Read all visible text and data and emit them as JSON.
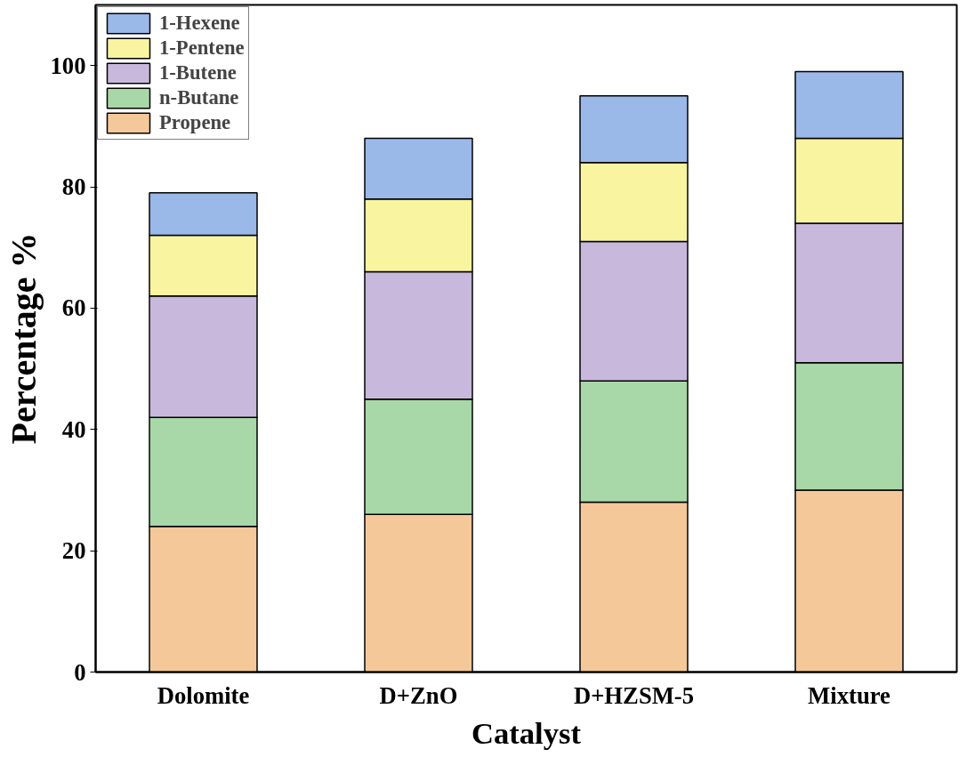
{
  "chart_data": {
    "type": "bar",
    "stacked": true,
    "xlabel": "Catalyst",
    "ylabel": "Percentage %",
    "categories": [
      "Dolomite",
      "D+ZnO",
      "D+HZSM-5",
      "Mixture"
    ],
    "series": [
      {
        "name": "Propene",
        "color": "#f5c89a",
        "values": [
          24,
          26,
          28,
          30
        ]
      },
      {
        "name": "n-Butane",
        "color": "#a8d8a8",
        "values": [
          18,
          19,
          20,
          21
        ]
      },
      {
        "name": "1-Butene",
        "color": "#c8b8dc",
        "values": [
          20,
          21,
          23,
          23
        ]
      },
      {
        "name": "1-Pentene",
        "color": "#f8f4a0",
        "values": [
          10,
          12,
          13,
          14
        ]
      },
      {
        "name": "1-Hexene",
        "color": "#9ab8e8",
        "values": [
          7,
          10,
          11,
          11
        ]
      }
    ],
    "ylim": [
      0,
      110
    ],
    "yticks": [
      0,
      20,
      40,
      60,
      80,
      100
    ],
    "grid": false,
    "legend": "top left"
  }
}
